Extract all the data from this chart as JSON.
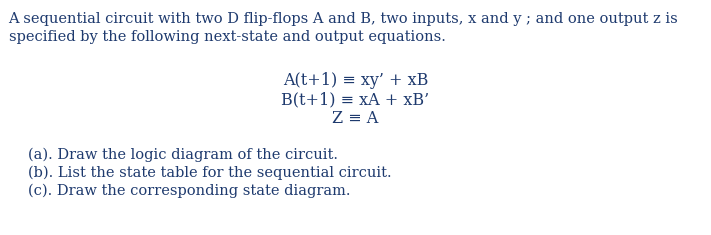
{
  "background_color": "#ffffff",
  "text_color": "#1e3a6e",
  "paragraph1_line1": "A sequential circuit with two D flip-flops A and B, two inputs, x and y ; and one output z is",
  "paragraph1_line2": "specified by the following next-state and output equations.",
  "eq1": "A(t+1) ≡ xy’ + xB",
  "eq2": "B(t+1) ≡ xA + xB’",
  "eq3": "Z ≡ A",
  "part_a": "(a). Draw the logic diagram of the circuit.",
  "part_b": "(b). List the state table for the sequential circuit.",
  "part_c": "(c). Draw the corresponding state diagram.",
  "font_size_body": 10.5,
  "font_size_eq": 11.5,
  "font_family": "DejaVu Serif"
}
